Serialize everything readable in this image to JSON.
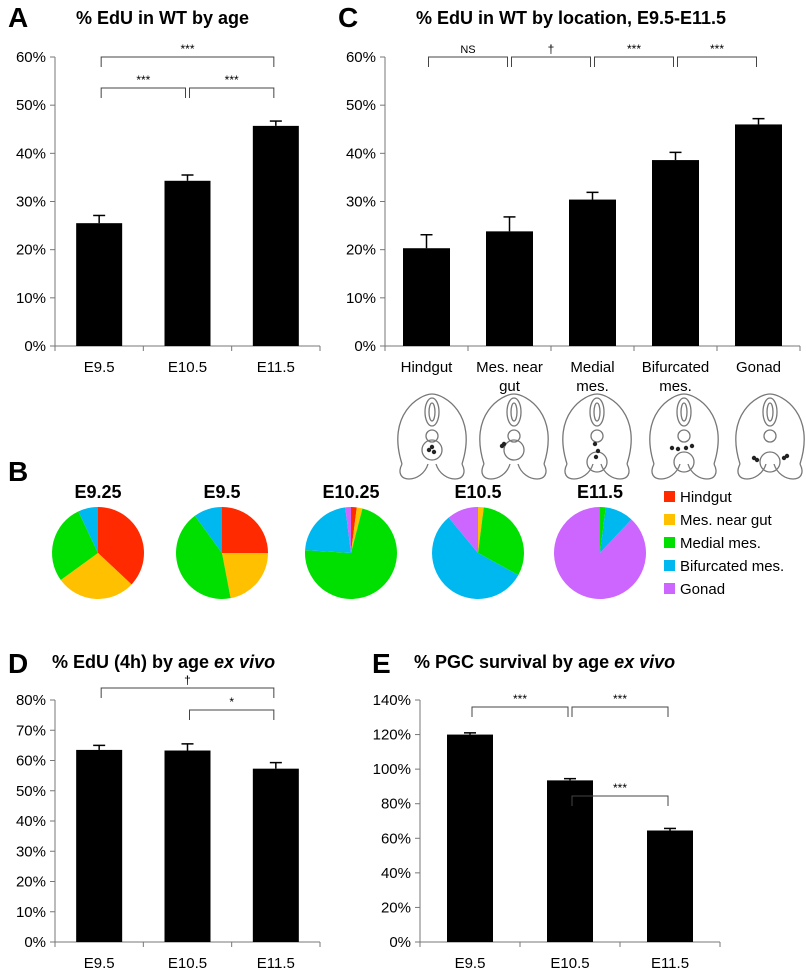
{
  "panels": {
    "A": {
      "letter": "A",
      "title": "% EdU in WT by age"
    },
    "C": {
      "letter": "C",
      "title": "% EdU in WT by location, E9.5-E11.5"
    },
    "B": {
      "letter": "B"
    },
    "D": {
      "letter": "D",
      "title_pre": "% EdU (4h) by age ",
      "title_em": "ex vivo"
    },
    "E": {
      "letter": "E",
      "title_pre": "% PGC survival by age ",
      "title_em": "ex vivo"
    }
  },
  "colors": {
    "Hindgut": "#ff2a00",
    "Mes. near gut": "#ffc000",
    "Medial mes.": "#00e000",
    "Bifurcated mes.": "#00b8f0",
    "Gonad": "#cc66ff",
    "bar": "#000000",
    "axis": "#777777"
  },
  "chart_data": [
    {
      "id": "A",
      "type": "bar",
      "title": "% EdU in WT by age",
      "categories": [
        "E9.5",
        "E10.5",
        "E11.5"
      ],
      "values": [
        25.5,
        34.3,
        45.7
      ],
      "errors": [
        1.6,
        1.2,
        1.0
      ],
      "ylim": [
        0,
        60
      ],
      "yticks": [
        0,
        10,
        20,
        30,
        40,
        50,
        60
      ],
      "ytick_labels": [
        "0%",
        "10%",
        "20%",
        "30%",
        "40%",
        "50%",
        "60%"
      ],
      "significance": [
        {
          "from": 0,
          "to": 1,
          "label": "***"
        },
        {
          "from": 1,
          "to": 2,
          "label": "***"
        },
        {
          "from": 0,
          "to": 2,
          "label": "***"
        }
      ]
    },
    {
      "id": "C",
      "type": "bar",
      "title": "% EdU in WT by location, E9.5-E11.5",
      "categories": [
        "Hindgut",
        "Mes. near gut",
        "Medial mes.",
        "Bifurcated mes.",
        "Gonad"
      ],
      "category_lines": [
        [
          "Hindgut"
        ],
        [
          "Mes. near",
          "gut"
        ],
        [
          "Medial",
          "mes."
        ],
        [
          "Bifurcated",
          "mes."
        ],
        [
          "Gonad"
        ]
      ],
      "values": [
        20.3,
        23.8,
        30.4,
        38.6,
        46.0
      ],
      "errors": [
        2.8,
        3.0,
        1.5,
        1.6,
        1.2
      ],
      "ylim": [
        0,
        60
      ],
      "yticks": [
        0,
        10,
        20,
        30,
        40,
        50,
        60
      ],
      "ytick_labels": [
        "0%",
        "10%",
        "20%",
        "30%",
        "40%",
        "50%",
        "60%"
      ],
      "significance": [
        {
          "from": 0,
          "to": 1,
          "label": "NS"
        },
        {
          "from": 1,
          "to": 2,
          "label": "†"
        },
        {
          "from": 2,
          "to": 3,
          "label": "***"
        },
        {
          "from": 3,
          "to": 4,
          "label": "***"
        }
      ]
    },
    {
      "id": "B",
      "type": "pie",
      "legend": [
        "Hindgut",
        "Mes. near gut",
        "Medial mes.",
        "Bifurcated mes.",
        "Gonad"
      ],
      "pies": [
        {
          "label": "E9.25",
          "values": [
            37,
            28,
            28,
            7,
            0
          ]
        },
        {
          "label": "E9.5",
          "values": [
            25,
            22,
            43,
            10,
            0
          ]
        },
        {
          "label": "E10.25",
          "values": [
            2,
            2,
            72,
            22,
            2
          ]
        },
        {
          "label": "E10.5",
          "values": [
            0,
            2,
            31,
            56,
            11
          ]
        },
        {
          "label": "E11.5",
          "values": [
            0,
            0,
            2,
            10,
            88
          ]
        }
      ]
    },
    {
      "id": "D",
      "type": "bar",
      "title": "% EdU (4h) by age ex vivo",
      "categories": [
        "E9.5",
        "E10.5",
        "E11.5"
      ],
      "values": [
        63.5,
        63.3,
        57.3
      ],
      "errors": [
        1.5,
        2.2,
        2.0
      ],
      "ylim": [
        0,
        80
      ],
      "yticks": [
        0,
        10,
        20,
        30,
        40,
        50,
        60,
        70,
        80
      ],
      "ytick_labels": [
        "0%",
        "10%",
        "20%",
        "30%",
        "40%",
        "50%",
        "60%",
        "70%",
        "80%"
      ],
      "significance": [
        {
          "from": 0,
          "to": 2,
          "label": "†"
        },
        {
          "from": 1,
          "to": 2,
          "label": "*"
        }
      ]
    },
    {
      "id": "E",
      "type": "bar",
      "title": "% PGC survival by age ex vivo",
      "categories": [
        "E9.5",
        "E10.5",
        "E11.5"
      ],
      "values": [
        120,
        93.5,
        64.5
      ],
      "errors": [
        1.0,
        1.0,
        1.2
      ],
      "ylim": [
        0,
        140
      ],
      "yticks": [
        0,
        20,
        40,
        60,
        80,
        100,
        120,
        140
      ],
      "ytick_labels": [
        "0%",
        "20%",
        "40%",
        "60%",
        "80%",
        "100%",
        "120%",
        "140%"
      ],
      "significance": [
        {
          "from": 0,
          "to": 1,
          "label": "***"
        },
        {
          "from": 1,
          "to": 2,
          "label": "***"
        },
        {
          "from": 1,
          "to": 2,
          "label": "***",
          "lower": true
        }
      ]
    }
  ]
}
